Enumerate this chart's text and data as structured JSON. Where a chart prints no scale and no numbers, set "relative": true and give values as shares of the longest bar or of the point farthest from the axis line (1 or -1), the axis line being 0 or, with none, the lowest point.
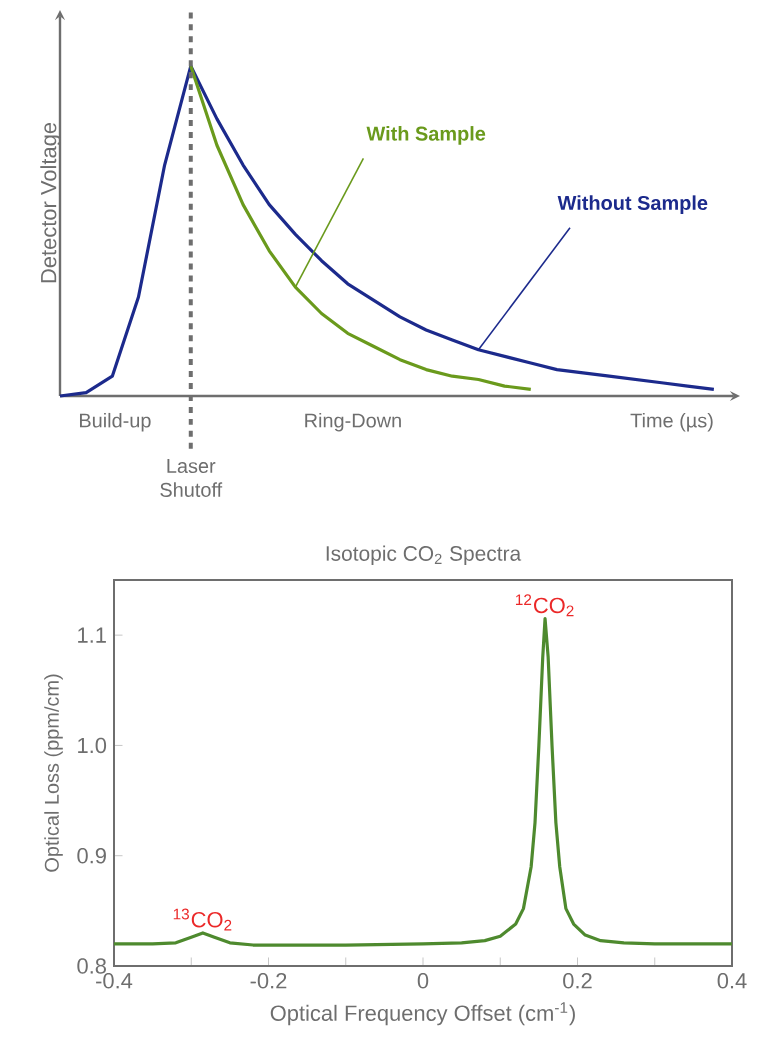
{
  "chart_data": [
    {
      "type": "line",
      "relative": true,
      "ylabel": "Detector Voltage",
      "tick_labels": false,
      "categories": [
        null,
        null,
        null,
        null,
        null,
        null,
        null,
        null,
        null,
        null,
        null,
        null,
        null,
        null,
        null,
        null,
        null,
        null,
        null,
        null,
        null,
        null,
        null,
        null,
        null,
        null
      ],
      "series": [
        {
          "name": "Without Sample",
          "color": "#1c2a8c",
          "values": [
            0,
            0.01,
            0.06,
            0.3,
            0.7,
            1.0,
            0.84,
            0.7,
            0.58,
            0.49,
            0.41,
            0.34,
            0.29,
            0.24,
            0.2,
            0.17,
            0.14,
            0.12,
            0.1,
            0.08,
            0.07,
            0.06,
            0.05,
            0.04,
            0.03,
            0.02
          ]
        },
        {
          "name": "With Sample",
          "color": "#6a9a1c",
          "values": [
            null,
            null,
            null,
            null,
            null,
            1.0,
            0.76,
            0.58,
            0.44,
            0.33,
            0.25,
            0.19,
            0.15,
            0.11,
            0.08,
            0.06,
            0.05,
            0.03,
            0.02,
            null,
            null,
            null,
            null,
            null,
            null,
            null
          ]
        }
      ],
      "annotations": [
        "Build-up",
        "Ring-Down",
        "Time (µs)",
        "Laser Shutoff"
      ]
    },
    {
      "type": "line",
      "title": "Isotopic CO$_{2}$ Spectra",
      "xlabel": "Optical Frequency Offset (cm$^{-1}$)",
      "ylabel": "Optical Loss (ppm/cm)",
      "xlim": [
        -0.4,
        0.4
      ],
      "ylim": [
        0.8,
        1.15
      ],
      "xticks": [
        -0.4,
        {
          "value": -0.3,
          "label": null
        },
        -0.2,
        {
          "value": -0.1,
          "label": null
        },
        0,
        {
          "value": 0.1,
          "label": null
        },
        0.2,
        {
          "value": 0.3,
          "label": null
        },
        0.4
      ],
      "yticks": [
        0.8,
        0.9,
        {
          "value": 1.0,
          "label": "1.0"
        },
        1.1
      ],
      "x": [
        -0.4,
        -0.35,
        -0.32,
        -0.3,
        -0.285,
        -0.27,
        -0.25,
        -0.22,
        -0.1,
        0,
        0.05,
        0.08,
        0.1,
        0.12,
        0.13,
        0.14,
        0.145,
        0.15,
        0.155,
        0.158,
        0.162,
        0.167,
        0.172,
        0.177,
        0.185,
        0.195,
        0.21,
        0.23,
        0.26,
        0.3,
        0.4
      ],
      "series": [
        {
          "color": "#4e8a2e",
          "values": [
            0.82,
            0.82,
            0.821,
            0.826,
            0.83,
            0.826,
            0.821,
            0.819,
            0.819,
            0.82,
            0.821,
            0.823,
            0.827,
            0.838,
            0.852,
            0.89,
            0.93,
            1.0,
            1.08,
            1.115,
            1.08,
            1.0,
            0.93,
            0.89,
            0.852,
            0.838,
            0.828,
            0.823,
            0.821,
            0.82,
            0.82
          ]
        }
      ],
      "annotations": [
        {
          "text": "$^{13}$CO$_{2}$",
          "x": -0.285,
          "y": 0.83
        },
        {
          "text": "$^{12}$CO$_{2}$",
          "x": 0.158,
          "y": 1.115
        }
      ]
    }
  ]
}
